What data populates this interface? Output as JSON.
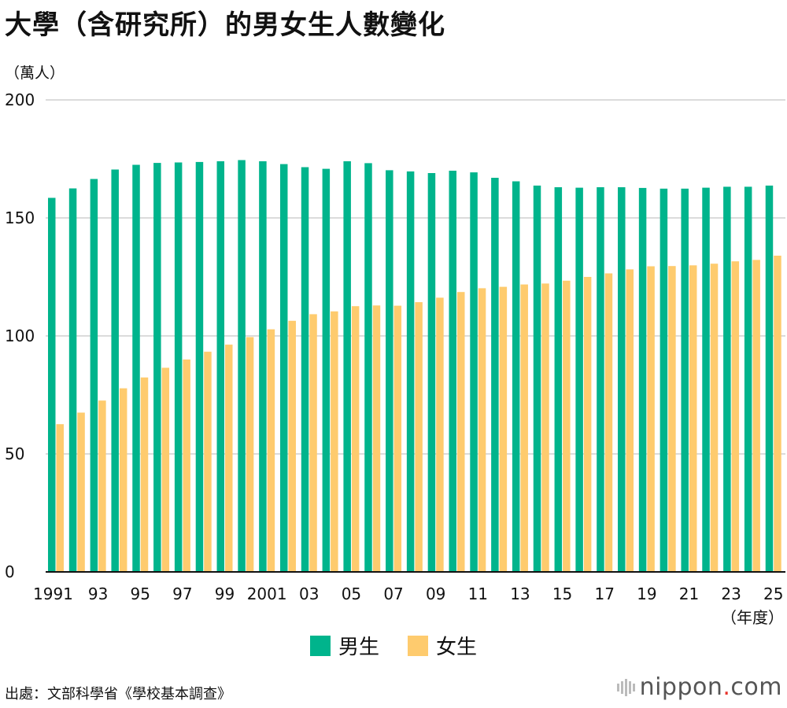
{
  "title": "大學（含研究所）的男女生人數變化",
  "unit_label": "（萬人）",
  "x_unit_label": "（年度）",
  "source": "出處：文部科學省《學校基本調查》",
  "brand": {
    "pre": "nippon",
    "dot": ".",
    "post": "com"
  },
  "colors": {
    "male": "#00b48c",
    "female": "#fecb6e",
    "grid": "#cfcfcf",
    "axis": "#111111"
  },
  "chart_data": {
    "type": "bar",
    "categories": [
      "1991",
      "1992",
      "1993",
      "1994",
      "1995",
      "1996",
      "1997",
      "1998",
      "1999",
      "2000",
      "2001",
      "2002",
      "2003",
      "2004",
      "2005",
      "2006",
      "2007",
      "2008",
      "2009",
      "2010",
      "2011",
      "2012",
      "2013",
      "2014",
      "2015",
      "2016",
      "2017",
      "2018",
      "2019",
      "2020",
      "2021",
      "2022",
      "2023",
      "2024",
      "2025"
    ],
    "tick_labels": [
      "1991",
      "93",
      "95",
      "97",
      "99",
      "2001",
      "03",
      "05",
      "07",
      "09",
      "11",
      "13",
      "15",
      "17",
      "19",
      "21",
      "23",
      "25"
    ],
    "tick_label_years": [
      "1991",
      "1993",
      "1995",
      "1997",
      "1999",
      "2001",
      "2003",
      "2005",
      "2007",
      "2009",
      "2011",
      "2013",
      "2015",
      "2017",
      "2019",
      "2021",
      "2023",
      "2025"
    ],
    "y_ticks": [
      "0",
      "50",
      "100",
      "150",
      "200"
    ],
    "ylim": [
      0,
      200
    ],
    "series": [
      {
        "name": "男生",
        "color": "#00b48c",
        "values": [
          158.5,
          162.5,
          166.5,
          170.5,
          172.5,
          173.3,
          173.5,
          173.7,
          174.0,
          174.5,
          174.0,
          172.8,
          171.5,
          170.8,
          174.0,
          173.2,
          170.2,
          169.7,
          169.0,
          170.0,
          169.3,
          167.0,
          165.5,
          163.7,
          163.0,
          162.8,
          163.0,
          163.0,
          162.7,
          162.4,
          162.4,
          162.8,
          163.2,
          163.2,
          163.7
        ]
      },
      {
        "name": "女生",
        "color": "#fecb6e",
        "values": [
          62.6,
          67.5,
          72.6,
          77.8,
          82.4,
          86.5,
          90.0,
          93.3,
          96.3,
          99.5,
          102.8,
          106.4,
          109.2,
          110.4,
          112.6,
          112.9,
          112.8,
          114.3,
          116.2,
          118.6,
          120.2,
          120.8,
          121.8,
          122.2,
          123.4,
          125.0,
          126.5,
          128.2,
          129.5,
          129.6,
          129.9,
          130.6,
          131.6,
          132.2,
          134.0
        ]
      }
    ],
    "legend": {
      "placement": "bottom-center",
      "items": [
        "男生",
        "女生"
      ]
    },
    "grid": true
  }
}
